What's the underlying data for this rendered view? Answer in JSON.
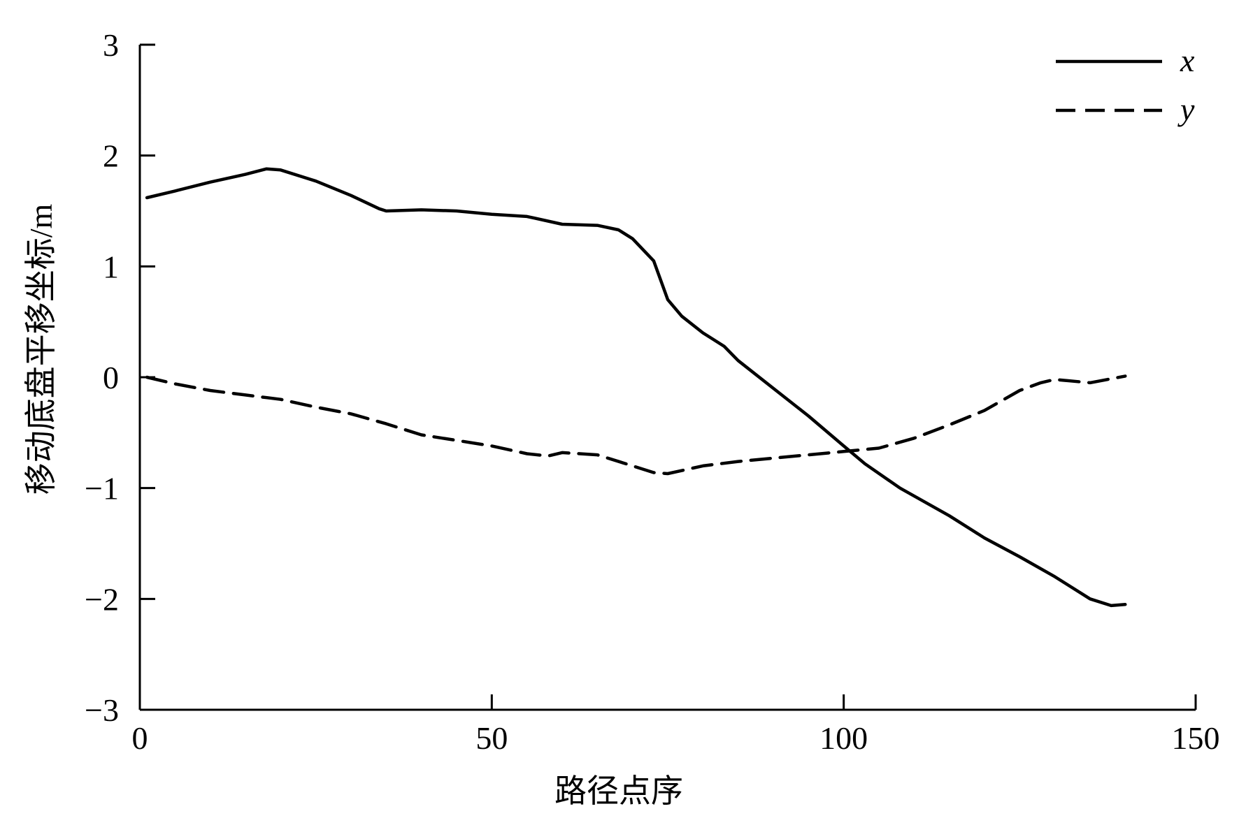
{
  "chart_data": {
    "type": "line",
    "xlabel": "路径点序",
    "ylabel": "移动底盘平移坐标/m",
    "xlim": [
      0,
      150
    ],
    "ylim": [
      -3,
      3
    ],
    "xticks": [
      0,
      50,
      100,
      150
    ],
    "yticks": [
      3,
      2,
      1,
      0,
      -1,
      -2,
      -3
    ],
    "xtick_labels": [
      "0",
      "50",
      "100",
      "150"
    ],
    "ytick_labels": [
      "3",
      "2",
      "1",
      "0",
      "−1",
      "−2",
      "−3"
    ],
    "grid": false,
    "legend_position": "top-right",
    "series": [
      {
        "name": "x",
        "style": "solid",
        "color": "#000000",
        "x": [
          1,
          5,
          10,
          15,
          18,
          20,
          25,
          30,
          34,
          35,
          40,
          45,
          50,
          55,
          60,
          65,
          68,
          70,
          73,
          75,
          77,
          80,
          83,
          85,
          90,
          95,
          100,
          103,
          108,
          115,
          120,
          125,
          130,
          135,
          138,
          140
        ],
        "y": [
          1.62,
          1.68,
          1.76,
          1.83,
          1.88,
          1.87,
          1.77,
          1.64,
          1.52,
          1.5,
          1.51,
          1.5,
          1.47,
          1.45,
          1.38,
          1.37,
          1.33,
          1.25,
          1.05,
          0.7,
          0.55,
          0.4,
          0.28,
          0.15,
          -0.1,
          -0.35,
          -0.62,
          -0.78,
          -1.0,
          -1.25,
          -1.45,
          -1.62,
          -1.8,
          -2.0,
          -2.06,
          -2.05
        ]
      },
      {
        "name": "y",
        "style": "dashed",
        "color": "#000000",
        "x": [
          1,
          5,
          10,
          15,
          20,
          25,
          30,
          35,
          40,
          45,
          50,
          55,
          58,
          60,
          65,
          70,
          73,
          75,
          80,
          85,
          90,
          95,
          100,
          105,
          110,
          115,
          120,
          125,
          128,
          130,
          135,
          140
        ],
        "y": [
          0.0,
          -0.06,
          -0.12,
          -0.16,
          -0.2,
          -0.27,
          -0.33,
          -0.42,
          -0.52,
          -0.57,
          -0.62,
          -0.69,
          -0.71,
          -0.68,
          -0.7,
          -0.8,
          -0.86,
          -0.87,
          -0.8,
          -0.76,
          -0.73,
          -0.7,
          -0.67,
          -0.64,
          -0.55,
          -0.43,
          -0.3,
          -0.12,
          -0.05,
          -0.02,
          -0.05,
          0.01
        ]
      }
    ]
  }
}
